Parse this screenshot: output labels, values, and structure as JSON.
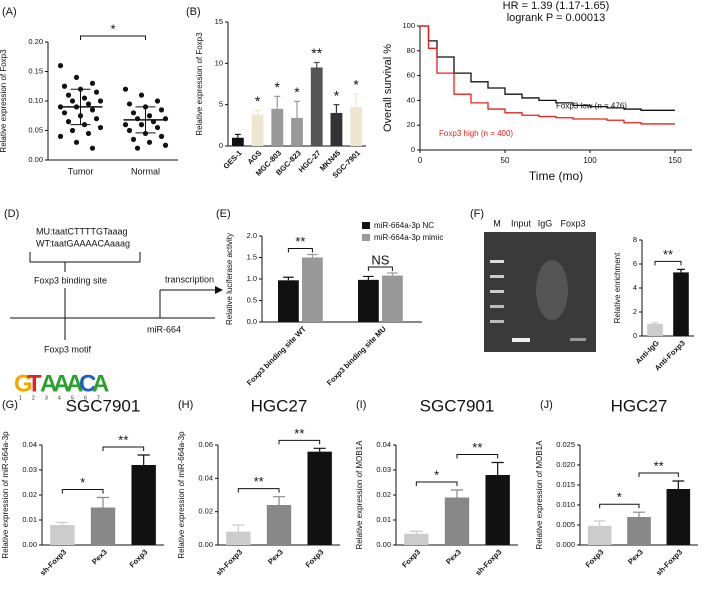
{
  "chart_data": [
    {
      "type": "strip",
      "panel": "(A)",
      "ylabel": "Relative expression of Foxp3",
      "categories": [
        "Tumor",
        "Normal"
      ],
      "points": [
        [
          0.16,
          0.14,
          0.13,
          0.125,
          0.12,
          0.115,
          0.11,
          0.105,
          0.1,
          0.1,
          0.095,
          0.09,
          0.09,
          0.085,
          0.08,
          0.075,
          0.07,
          0.065,
          0.06,
          0.055,
          0.05,
          0.045,
          0.04,
          0.03,
          0.02
        ],
        [
          0.12,
          0.11,
          0.1,
          0.095,
          0.09,
          0.085,
          0.08,
          0.075,
          0.07,
          0.07,
          0.065,
          0.06,
          0.06,
          0.055,
          0.05,
          0.045,
          0.04,
          0.035,
          0.03,
          0.025,
          0.02
        ]
      ],
      "means": [
        0.09,
        0.068
      ],
      "sd": [
        0.03,
        0.022
      ],
      "color": "#111",
      "ylim": [
        0,
        0.2
      ],
      "yticks": [
        {
          "value": 0,
          "label": "0.00"
        },
        0.05,
        {
          "value": 0.1,
          "label": "0.10"
        },
        0.15,
        {
          "value": 0.2,
          "label": "0.20"
        }
      ],
      "annotations": [
        {
          "text": "*",
          "span": [
            0,
            1
          ]
        }
      ]
    },
    {
      "type": "bar",
      "panel": "(B)",
      "ylabel": "Relative expression of Foxp3",
      "categories": [
        "GES-1",
        "AGS",
        "MGC-803",
        "BGC-823",
        "HGC-27",
        "MKN45",
        "SGC-7901"
      ],
      "values": [
        1,
        3.8,
        4.5,
        3.4,
        9.5,
        4,
        4.7
      ],
      "errors": [
        0.4,
        0.5,
        1.5,
        2,
        0.6,
        1,
        1.6
      ],
      "colors": [
        "#111",
        "#efe6cf",
        "#999",
        "#999",
        "#555",
        "#333",
        "#efe6cf"
      ],
      "ylim": [
        0,
        15
      ],
      "yticks": [
        0,
        5,
        10,
        15
      ],
      "annotations": [
        {
          "text": "*",
          "at": 1
        },
        {
          "text": "*",
          "at": 2
        },
        {
          "text": "*",
          "at": 3
        },
        {
          "text": "**",
          "at": 4
        },
        {
          "text": "*",
          "at": 5
        },
        {
          "text": "*",
          "at": 6
        }
      ]
    },
    {
      "type": "line",
      "panel": "(C)",
      "title": "HR = 1.39 (1.17-1.65)",
      "subtitle": "logrank P = 0.00013",
      "xlabel": "Time (mo)",
      "ylabel": "Overall survival %",
      "series": [
        {
          "name": "Foxp3 low (n = 476)",
          "color": "#111",
          "x": [
            0,
            5,
            10,
            20,
            30,
            40,
            50,
            60,
            70,
            80,
            90,
            100,
            110,
            120,
            130,
            140,
            150
          ],
          "values": [
            100,
            88,
            75,
            62,
            55,
            50,
            45,
            42,
            40,
            38,
            36,
            35,
            34,
            33,
            32,
            32,
            32
          ]
        },
        {
          "name": "Foxp3 high (n = 400)",
          "color": "#e8201c",
          "x": [
            0,
            5,
            10,
            20,
            30,
            40,
            50,
            60,
            70,
            80,
            90,
            100,
            110,
            120,
            130,
            140,
            150
          ],
          "values": [
            100,
            82,
            62,
            45,
            38,
            33,
            30,
            28,
            27,
            26,
            25,
            25,
            24,
            22,
            21,
            21,
            21
          ]
        }
      ],
      "xlim": [
        0,
        160
      ],
      "xticks": [
        0,
        50,
        100,
        150
      ],
      "ylim": [
        0,
        100
      ],
      "yticks": [
        0,
        20,
        40,
        60,
        80,
        100
      ]
    },
    {
      "type": "bar",
      "panel": "(E)",
      "ylabel": "Relative luciferase activity",
      "categories": [
        "Foxp3 binding site WT",
        "Foxp3 binding site MU"
      ],
      "series": [
        {
          "name": "miR-664a-3p NC",
          "color": "#111",
          "values": [
            0.97,
            0.98
          ],
          "errors": [
            0.07,
            0.08
          ]
        },
        {
          "name": "miR-664a-3p mimic",
          "color": "#999",
          "values": [
            1.5,
            1.08
          ],
          "errors": [
            0.07,
            0.06
          ]
        }
      ],
      "ylim": [
        0,
        2
      ],
      "yticks": [
        {
          "value": 0,
          "label": "0.0"
        },
        0.5,
        {
          "value": 1,
          "label": "1.0"
        },
        1.5,
        {
          "value": 2,
          "label": "2.0"
        }
      ],
      "annotations": [
        {
          "text": "**",
          "group": 0
        },
        {
          "text": "NS",
          "group": 1
        }
      ]
    },
    {
      "type": "bar",
      "ylabel": "Relative enrichment",
      "categories": [
        "Anti-IgG",
        "Anti-Foxp3"
      ],
      "values": [
        1,
        5.3
      ],
      "errors": [
        0.1,
        0.25
      ],
      "colors": [
        "#ccc",
        "#111"
      ],
      "ylim": [
        0,
        8
      ],
      "yticks": [
        0,
        2,
        4,
        6,
        8
      ],
      "annotations": [
        {
          "text": "**",
          "span": [
            0,
            1
          ]
        }
      ]
    },
    {
      "type": "bar",
      "panel": "(G)",
      "title": "SGC7901",
      "ylabel": "Relative expression of miR-664a-3p",
      "categories": [
        "sh-Foxp3",
        "Pex3",
        "Foxp3"
      ],
      "values": [
        0.008,
        0.015,
        0.032
      ],
      "errors": [
        0.001,
        0.004,
        0.004
      ],
      "colors": [
        "#ccc",
        "#888",
        "#111"
      ],
      "ylim": [
        0,
        0.04
      ],
      "yticks": [
        {
          "value": 0,
          "label": "0.00"
        },
        0.01,
        0.02,
        0.03,
        {
          "value": 0.04,
          "label": "0.04"
        }
      ],
      "annotations": [
        {
          "text": "*",
          "span": [
            0,
            1
          ]
        },
        {
          "text": "**",
          "span": [
            1,
            2
          ]
        }
      ]
    },
    {
      "type": "bar",
      "panel": "(H)",
      "title": "HGC27",
      "ylabel": "Relative expression of miR-664a-3p",
      "categories": [
        "sh-Foxp3",
        "Pex3",
        "Foxp3"
      ],
      "values": [
        0.008,
        0.024,
        0.056
      ],
      "errors": [
        0.004,
        0.005,
        0.002
      ],
      "colors": [
        "#ccc",
        "#888",
        "#111"
      ],
      "ylim": [
        0,
        0.06
      ],
      "yticks": [
        {
          "value": 0,
          "label": "0.00"
        },
        0.02,
        0.04,
        0.06
      ],
      "annotations": [
        {
          "text": "**",
          "span": [
            0,
            1
          ]
        },
        {
          "text": "**",
          "span": [
            1,
            2
          ]
        }
      ]
    },
    {
      "type": "bar",
      "panel": "(I)",
      "title": "SGC7901",
      "ylabel": "Relative expression of MOB1A",
      "categories": [
        "Foxp3",
        "Pex3",
        "sh-Foxp3"
      ],
      "values": [
        0.0045,
        0.019,
        0.028
      ],
      "errors": [
        0.001,
        0.003,
        0.005
      ],
      "colors": [
        "#ccc",
        "#888",
        "#111"
      ],
      "ylim": [
        0,
        0.04
      ],
      "yticks": [
        {
          "value": 0,
          "label": "0.00"
        },
        0.01,
        0.02,
        0.03,
        {
          "value": 0.04,
          "label": "0.04"
        }
      ],
      "annotations": [
        {
          "text": "*",
          "span": [
            0,
            1
          ]
        },
        {
          "text": "**",
          "span": [
            1,
            2
          ]
        }
      ]
    },
    {
      "type": "bar",
      "panel": "(J)",
      "title": "HGC27",
      "ylabel": "Relative expression of MOB1A",
      "categories": [
        "Foxp3",
        "Pex3",
        "sh-Foxp3"
      ],
      "values": [
        0.0048,
        0.007,
        0.014
      ],
      "errors": [
        0.0012,
        0.0012,
        0.002
      ],
      "colors": [
        "#ccc",
        "#888",
        "#111"
      ],
      "ylim": [
        0,
        0.025
      ],
      "yticks": [
        {
          "value": 0,
          "label": "0.000"
        },
        0.005,
        {
          "value": 0.01,
          "label": "0.010"
        },
        0.015,
        {
          "value": 0.02,
          "label": "0.020"
        },
        0.025
      ],
      "annotations": [
        {
          "text": "*",
          "span": [
            0,
            1
          ]
        },
        {
          "text": "**",
          "span": [
            1,
            2
          ]
        }
      ]
    }
  ],
  "diagram": {
    "panel": "(D)",
    "mu": "MU:taatCTTTTGTaaag",
    "wt": "WT:taatGAAAACAaaag",
    "site": "Foxp3 binding site",
    "transcription": "transcription",
    "motif": "Foxp3 motif",
    "mirna": "miR-664",
    "logo": [
      "G",
      "T",
      "A",
      "A",
      "A",
      "C",
      "A"
    ],
    "positions": [
      "1",
      "2",
      "3",
      "4",
      "5",
      "6",
      "7"
    ]
  },
  "gel": {
    "panel": "(F)",
    "lanes": [
      "M",
      "Input",
      "IgG",
      "Foxp3"
    ]
  }
}
